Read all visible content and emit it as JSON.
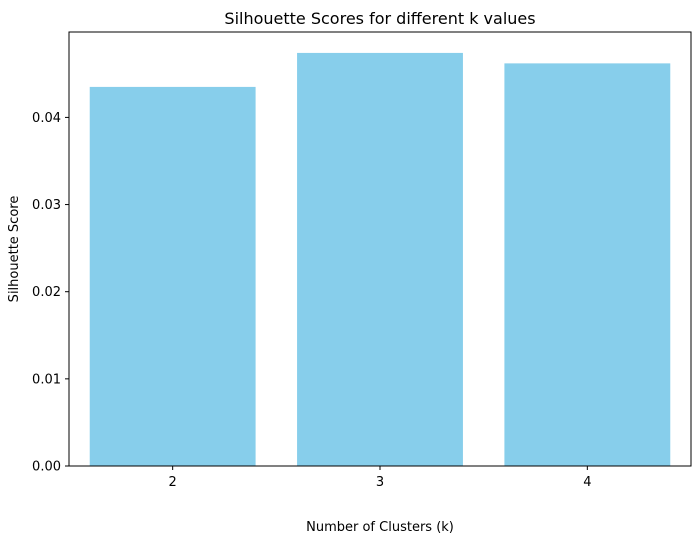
{
  "chart_data": {
    "type": "bar",
    "title": "Silhouette Scores for different k values",
    "xlabel": "Number of Clusters (k)",
    "ylabel": "Silhouette Score",
    "categories": [
      "2",
      "3",
      "4"
    ],
    "values": [
      0.0435,
      0.0474,
      0.0462
    ],
    "ylim": [
      0,
      0.0498
    ],
    "yticks": [
      0.0,
      0.01,
      0.02,
      0.03,
      0.04
    ],
    "ytick_labels": [
      "0.00",
      "0.01",
      "0.02",
      "0.03",
      "0.04"
    ],
    "bar_color": "#87ceeb",
    "grid": false,
    "legend": "none"
  }
}
